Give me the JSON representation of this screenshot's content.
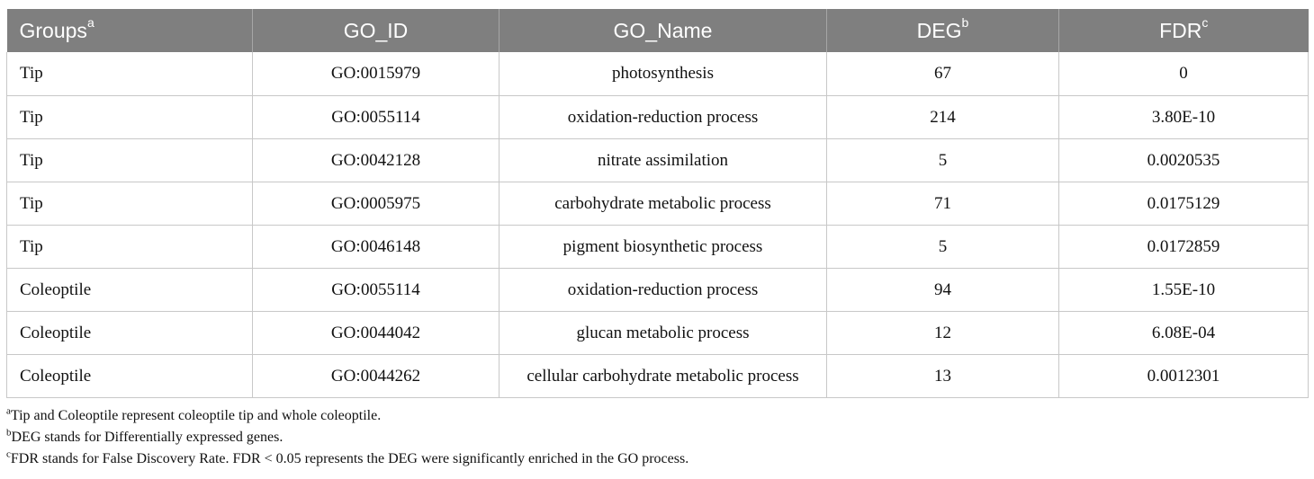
{
  "table": {
    "columns": [
      {
        "label": "Groups",
        "sup": "a"
      },
      {
        "label": "GO_ID",
        "sup": ""
      },
      {
        "label": "GO_Name",
        "sup": ""
      },
      {
        "label": "DEG",
        "sup": "b"
      },
      {
        "label": "FDR",
        "sup": "c"
      }
    ],
    "rows": [
      {
        "group": "Tip",
        "go_id": "GO:0015979",
        "go_name": "photosynthesis",
        "deg": "67",
        "fdr": "0"
      },
      {
        "group": "Tip",
        "go_id": "GO:0055114",
        "go_name": "oxidation-reduction process",
        "deg": "214",
        "fdr": "3.80E-10"
      },
      {
        "group": "Tip",
        "go_id": "GO:0042128",
        "go_name": "nitrate assimilation",
        "deg": "5",
        "fdr": "0.0020535"
      },
      {
        "group": "Tip",
        "go_id": "GO:0005975",
        "go_name": "carbohydrate metabolic process",
        "deg": "71",
        "fdr": "0.0175129"
      },
      {
        "group": "Tip",
        "go_id": "GO:0046148",
        "go_name": "pigment biosynthetic process",
        "deg": "5",
        "fdr": "0.0172859"
      },
      {
        "group": "Coleoptile",
        "go_id": "GO:0055114",
        "go_name": "oxidation-reduction process",
        "deg": "94",
        "fdr": "1.55E-10"
      },
      {
        "group": "Coleoptile",
        "go_id": "GO:0044042",
        "go_name": "glucan metabolic process",
        "deg": "12",
        "fdr": "6.08E-04"
      },
      {
        "group": "Coleoptile",
        "go_id": "GO:0044262",
        "go_name": "cellular carbohydrate metabolic process",
        "deg": "13",
        "fdr": "0.0012301"
      }
    ]
  },
  "footnotes": [
    {
      "mark": "a",
      "text": "Tip and Coleoptile represent coleoptile tip and whole coleoptile."
    },
    {
      "mark": "b",
      "text": "DEG stands for Differentially expressed genes."
    },
    {
      "mark": "c",
      "text": "FDR stands for False Discovery Rate. FDR < 0.05 represents the DEG were significantly enriched in the GO process."
    }
  ]
}
